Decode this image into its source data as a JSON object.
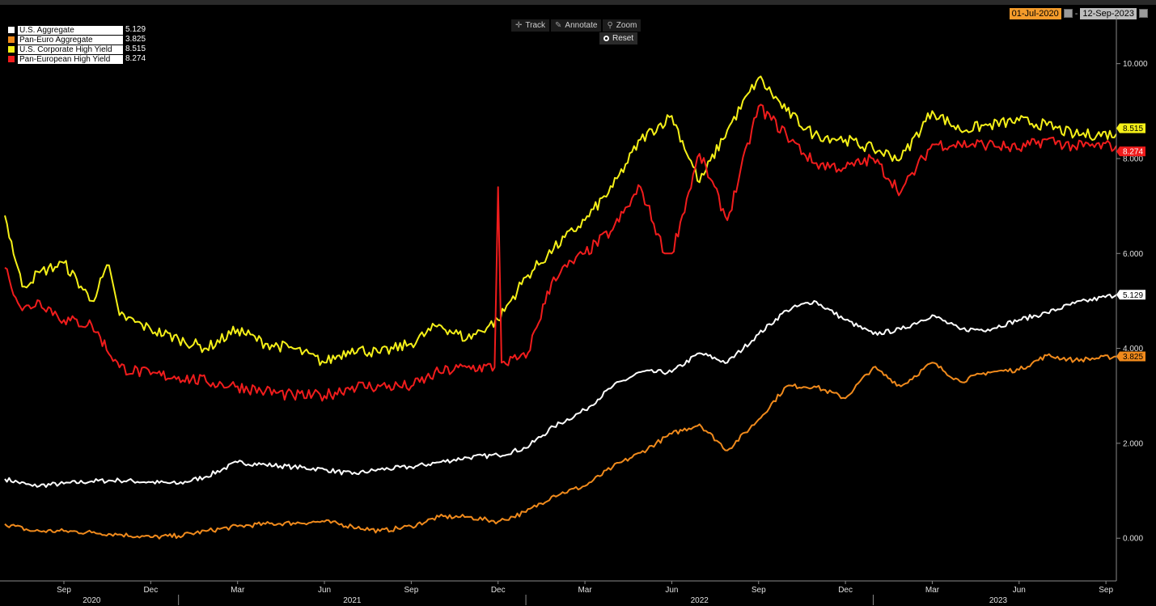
{
  "date_range": {
    "start": "01-Jul-2020",
    "separator": "-",
    "end": "12-Sep-2023"
  },
  "toolbar": {
    "track_label": "Track",
    "annotate_label": "Annotate",
    "zoom_label": "Zoom",
    "reset_label": "Reset"
  },
  "colors": {
    "background": "#000000",
    "us_aggregate": "#ffffff",
    "pan_euro_aggregate": "#f08a1c",
    "us_corporate_hy": "#f5f018",
    "pan_european_hy": "#f01c1c"
  },
  "chart_data": {
    "type": "line",
    "ylim": [
      -0.9,
      11.0
    ],
    "grid": false,
    "legend_placement": "top-left",
    "y_ticks": [
      "10.000",
      "8.000",
      "6.000",
      "4.000",
      "2.000",
      "0.000"
    ],
    "y_tick_values": [
      10,
      8,
      6,
      4,
      2,
      0
    ],
    "x_month_ticks": [
      {
        "label": "Sep",
        "t": 2020.67
      },
      {
        "label": "Dec",
        "t": 2020.92
      },
      {
        "label": "Mar",
        "t": 2021.17
      },
      {
        "label": "Jun",
        "t": 2021.42
      },
      {
        "label": "Sep",
        "t": 2021.67
      },
      {
        "label": "Dec",
        "t": 2021.92
      },
      {
        "label": "Mar",
        "t": 2022.17
      },
      {
        "label": "Jun",
        "t": 2022.42
      },
      {
        "label": "Sep",
        "t": 2022.67
      },
      {
        "label": "Dec",
        "t": 2022.92
      },
      {
        "label": "Mar",
        "t": 2023.17
      },
      {
        "label": "Jun",
        "t": 2023.42
      },
      {
        "label": "Sep",
        "t": 2023.67
      }
    ],
    "x_year_labels": [
      {
        "label": "2020",
        "t": 2020.75
      },
      {
        "label": "2021",
        "t": 2021.5
      },
      {
        "label": "2022",
        "t": 2022.5
      },
      {
        "label": "2023",
        "t": 2023.36
      }
    ],
    "x_year_dividers": [
      2021.0,
      2022.0,
      2023.0
    ],
    "series": [
      {
        "name": "U.S. Aggregate",
        "last": "5.129",
        "color": "#ffffff",
        "x": [
          2020.5,
          2020.58,
          2020.67,
          2020.75,
          2020.83,
          2020.92,
          2021.0,
          2021.08,
          2021.17,
          2021.25,
          2021.33,
          2021.42,
          2021.5,
          2021.58,
          2021.67,
          2021.75,
          2021.83,
          2021.92,
          2022.0,
          2022.08,
          2022.17,
          2022.25,
          2022.33,
          2022.42,
          2022.5,
          2022.58,
          2022.67,
          2022.75,
          2022.83,
          2022.92,
          2023.0,
          2023.08,
          2023.17,
          2023.25,
          2023.33,
          2023.42,
          2023.5,
          2023.58,
          2023.7
        ],
        "y": [
          1.25,
          1.1,
          1.15,
          1.2,
          1.22,
          1.18,
          1.15,
          1.3,
          1.6,
          1.55,
          1.5,
          1.45,
          1.35,
          1.45,
          1.5,
          1.6,
          1.7,
          1.75,
          1.9,
          2.35,
          2.7,
          3.2,
          3.5,
          3.5,
          3.9,
          3.7,
          4.3,
          4.8,
          5.0,
          4.6,
          4.3,
          4.4,
          4.7,
          4.4,
          4.4,
          4.6,
          4.75,
          4.95,
          5.13
        ]
      },
      {
        "name": "Pan-Euro Aggregate",
        "last": "3.825",
        "color": "#f08a1c",
        "x": [
          2020.5,
          2020.58,
          2020.67,
          2020.75,
          2020.83,
          2020.92,
          2021.0,
          2021.08,
          2021.17,
          2021.25,
          2021.33,
          2021.42,
          2021.5,
          2021.58,
          2021.67,
          2021.75,
          2021.83,
          2021.92,
          2022.0,
          2022.08,
          2022.17,
          2022.25,
          2022.33,
          2022.42,
          2022.5,
          2022.58,
          2022.67,
          2022.75,
          2022.83,
          2022.92,
          2023.0,
          2023.08,
          2023.17,
          2023.25,
          2023.33,
          2023.42,
          2023.5,
          2023.58,
          2023.7
        ],
        "y": [
          0.3,
          0.15,
          0.15,
          0.12,
          0.08,
          0.02,
          0.05,
          0.15,
          0.25,
          0.3,
          0.32,
          0.35,
          0.25,
          0.15,
          0.25,
          0.45,
          0.45,
          0.35,
          0.55,
          0.9,
          1.1,
          1.5,
          1.8,
          2.2,
          2.4,
          1.85,
          2.5,
          3.2,
          3.2,
          2.95,
          3.6,
          3.2,
          3.7,
          3.3,
          3.5,
          3.55,
          3.85,
          3.75,
          3.83
        ]
      },
      {
        "name": "U.S. Corporate High Yield",
        "last": "8.515",
        "color": "#f5f018",
        "x": [
          2020.5,
          2020.55,
          2020.6,
          2020.67,
          2020.75,
          2020.8,
          2020.83,
          2020.92,
          2021.0,
          2021.08,
          2021.17,
          2021.25,
          2021.33,
          2021.42,
          2021.5,
          2021.58,
          2021.67,
          2021.75,
          2021.83,
          2021.92,
          2022.0,
          2022.08,
          2022.17,
          2022.25,
          2022.33,
          2022.42,
          2022.5,
          2022.58,
          2022.67,
          2022.75,
          2022.83,
          2022.92,
          2023.0,
          2023.08,
          2023.17,
          2023.25,
          2023.33,
          2023.42,
          2023.5,
          2023.58,
          2023.7
        ],
        "y": [
          6.8,
          5.3,
          5.6,
          5.8,
          5.0,
          5.75,
          4.7,
          4.4,
          4.2,
          4.0,
          4.4,
          4.1,
          4.0,
          3.7,
          4.0,
          3.9,
          4.1,
          4.5,
          4.2,
          4.6,
          5.5,
          6.1,
          6.7,
          7.4,
          8.4,
          8.9,
          7.5,
          8.6,
          9.7,
          9.0,
          8.5,
          8.4,
          8.2,
          8.0,
          9.0,
          8.6,
          8.7,
          8.8,
          8.7,
          8.5,
          8.52
        ]
      },
      {
        "name": "Pan-European High Yield",
        "last": "8.274",
        "color": "#f01c1c",
        "x": [
          2020.5,
          2020.55,
          2020.6,
          2020.67,
          2020.75,
          2020.83,
          2020.92,
          2021.0,
          2021.08,
          2021.17,
          2021.25,
          2021.33,
          2021.42,
          2021.5,
          2021.58,
          2021.67,
          2021.75,
          2021.83,
          2021.91,
          2021.92,
          2021.93,
          2022.0,
          2022.08,
          2022.17,
          2022.25,
          2022.33,
          2022.4,
          2022.42,
          2022.5,
          2022.58,
          2022.67,
          2022.75,
          2022.83,
          2022.92,
          2023.0,
          2023.08,
          2023.17,
          2023.25,
          2023.33,
          2023.42,
          2023.5,
          2023.58,
          2023.7
        ],
        "y": [
          5.7,
          4.8,
          5.0,
          4.6,
          4.5,
          3.6,
          3.45,
          3.4,
          3.3,
          3.2,
          3.1,
          3.0,
          3.0,
          3.2,
          3.2,
          3.2,
          3.5,
          3.6,
          3.6,
          7.4,
          3.7,
          3.8,
          5.5,
          6.0,
          6.5,
          7.4,
          6.0,
          6.0,
          8.1,
          6.7,
          9.1,
          8.5,
          7.9,
          7.8,
          8.0,
          7.3,
          8.3,
          8.3,
          8.3,
          8.2,
          8.4,
          8.25,
          8.27
        ]
      }
    ]
  }
}
